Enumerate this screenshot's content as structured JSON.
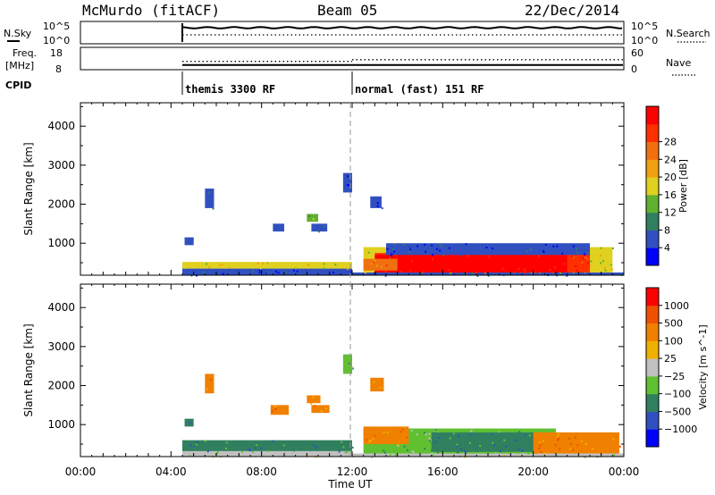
{
  "header": {
    "title": "McMurdo (fitACF)",
    "beam": "Beam 05",
    "date": "22/Dec/2014"
  },
  "summary": {
    "nsky_label": "N.Sky",
    "nsky_ticks": [
      "10^5",
      "10^0"
    ],
    "nsearch_label": "N.Search",
    "nsearch_ticks": [
      "10^5",
      "10^0"
    ],
    "freq_label": "Freq.",
    "freq_unit": "[MHz]",
    "freq_ticks": [
      "18",
      "8"
    ],
    "nave_label": "Nave",
    "nave_ticks": [
      "60",
      "0"
    ],
    "cpid_label": "CPID",
    "cpid_segments": [
      {
        "label": "themis 3300 RF",
        "start_hour": 4.5
      },
      {
        "label": "normal (fast) 151 RF",
        "start_hour": 12.0
      }
    ],
    "data_start_hour": 4.5,
    "mode_change_hour": 12.0,
    "freq_value_mhz": 9.5,
    "nave_early": 20,
    "nave_late": 25
  },
  "chart_data": [
    {
      "type": "heatmap",
      "title": "",
      "xlabel": "",
      "ylabel": "Slant Range [km]",
      "xlim": [
        0,
        24
      ],
      "ylim": [
        180,
        4600
      ],
      "x_ticks": [
        "00:00",
        "04:00",
        "08:00",
        "12:00",
        "16:00",
        "20:00",
        "00:00"
      ],
      "y_ticks": [
        1000,
        2000,
        3000,
        4000
      ],
      "colorbar": {
        "label": "Power [dB]",
        "ticks": [
          4,
          8,
          12,
          16,
          20,
          24,
          28
        ],
        "colors": [
          "#0000ff",
          "#3050c0",
          "#308060",
          "#60b030",
          "#e0d020",
          "#f0a010",
          "#f07010",
          "#ff3000",
          "#ff0000"
        ]
      },
      "regions": [
        {
          "t0": 4.5,
          "t1": 12.0,
          "r0": 180,
          "r1": 350,
          "c": 1
        },
        {
          "t0": 4.5,
          "t1": 12.0,
          "r0": 350,
          "r1": 520,
          "c": 4
        },
        {
          "t0": 12.0,
          "t1": 24.0,
          "r0": 180,
          "r1": 250,
          "c": 1
        },
        {
          "t0": 12.5,
          "t1": 23.5,
          "r0": 250,
          "r1": 900,
          "c": 4
        },
        {
          "t0": 13.0,
          "t1": 22.5,
          "r0": 250,
          "r1": 750,
          "c": 7
        },
        {
          "t0": 13.0,
          "t1": 21.5,
          "r0": 250,
          "r1": 700,
          "c": 8
        },
        {
          "t0": 13.5,
          "t1": 22.5,
          "r0": 700,
          "r1": 1000,
          "c": 1
        },
        {
          "t0": 12.5,
          "t1": 14.0,
          "r0": 300,
          "r1": 600,
          "c": 6
        },
        {
          "t0": 4.6,
          "t1": 5.0,
          "r0": 950,
          "r1": 1150,
          "c": 1
        },
        {
          "t0": 5.5,
          "t1": 5.9,
          "r0": 1900,
          "r1": 2400,
          "c": 1
        },
        {
          "t0": 8.5,
          "t1": 9.0,
          "r0": 1300,
          "r1": 1500,
          "c": 1
        },
        {
          "t0": 10.0,
          "t1": 10.5,
          "r0": 1550,
          "r1": 1750,
          "c": 3
        },
        {
          "t0": 10.2,
          "t1": 10.9,
          "r0": 1300,
          "r1": 1500,
          "c": 1
        },
        {
          "t0": 11.6,
          "t1": 12.0,
          "r0": 2300,
          "r1": 2800,
          "c": 1
        },
        {
          "t0": 12.8,
          "t1": 13.3,
          "r0": 1900,
          "r1": 2200,
          "c": 1
        }
      ]
    },
    {
      "type": "heatmap",
      "title": "",
      "xlabel": "Time UT",
      "ylabel": "Slant Range [km]",
      "xlim": [
        0,
        24
      ],
      "ylim": [
        180,
        4600
      ],
      "x_ticks": [
        "00:00",
        "04:00",
        "08:00",
        "12:00",
        "16:00",
        "20:00",
        "00:00"
      ],
      "y_ticks": [
        1000,
        2000,
        3000,
        4000
      ],
      "colorbar": {
        "label": "Velocity [m s^-1]",
        "ticks": [
          "1000",
          "500",
          "100",
          "25",
          "−25",
          "−100",
          "−500",
          "−1000"
        ],
        "colors": [
          "#0000ff",
          "#3050c0",
          "#308060",
          "#60c030",
          "#c0c0c0",
          "#f0b000",
          "#f08000",
          "#f05000",
          "#ff0000"
        ]
      },
      "regions": [
        {
          "t0": 4.5,
          "t1": 12.0,
          "r0": 180,
          "r1": 320,
          "c": 4
        },
        {
          "t0": 4.5,
          "t1": 12.0,
          "r0": 320,
          "r1": 600,
          "c": 2
        },
        {
          "t0": 12.0,
          "t1": 24.0,
          "r0": 180,
          "r1": 260,
          "c": 4
        },
        {
          "t0": 12.5,
          "t1": 21.0,
          "r0": 260,
          "r1": 900,
          "c": 3
        },
        {
          "t0": 15.5,
          "t1": 20.5,
          "r0": 300,
          "r1": 800,
          "c": 2
        },
        {
          "t0": 20.0,
          "t1": 23.8,
          "r0": 260,
          "r1": 800,
          "c": 6
        },
        {
          "t0": 12.5,
          "t1": 14.5,
          "r0": 500,
          "r1": 950,
          "c": 6
        },
        {
          "t0": 4.6,
          "t1": 5.0,
          "r0": 950,
          "r1": 1150,
          "c": 2
        },
        {
          "t0": 5.5,
          "t1": 5.9,
          "r0": 1800,
          "r1": 2300,
          "c": 6
        },
        {
          "t0": 8.4,
          "t1": 9.2,
          "r0": 1250,
          "r1": 1500,
          "c": 6
        },
        {
          "t0": 10.0,
          "t1": 10.6,
          "r0": 1550,
          "r1": 1750,
          "c": 6
        },
        {
          "t0": 10.2,
          "t1": 11.0,
          "r0": 1300,
          "r1": 1500,
          "c": 6
        },
        {
          "t0": 11.6,
          "t1": 12.0,
          "r0": 2300,
          "r1": 2800,
          "c": 3
        },
        {
          "t0": 12.8,
          "t1": 13.4,
          "r0": 1850,
          "r1": 2200,
          "c": 6
        }
      ]
    }
  ]
}
